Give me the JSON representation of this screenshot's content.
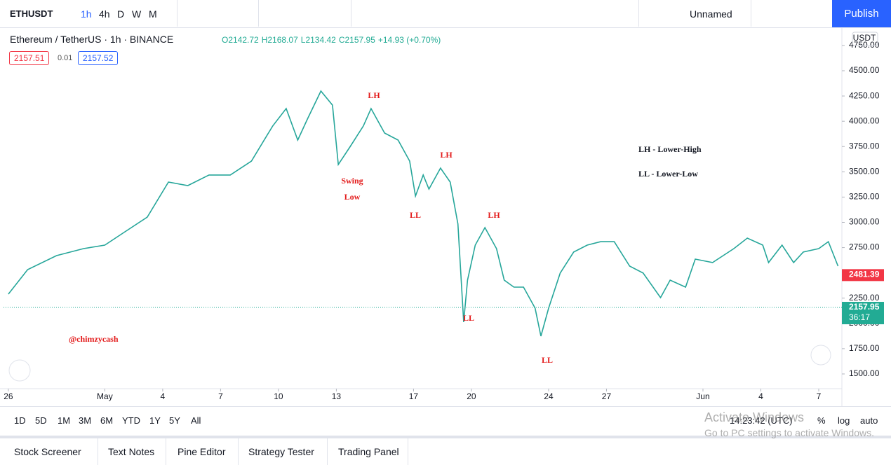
{
  "toolbar": {
    "symbol": "ETHUSDT",
    "intervals": [
      "1h",
      "4h",
      "D",
      "W",
      "M"
    ],
    "layout_name": "Unnamed",
    "publish": "Publish"
  },
  "legend_header": {
    "title": "Ethereum / TetherUS · 1h · BINANCE",
    "ohlc": [
      "O2142.72",
      "H2168.07",
      "L2134.42",
      "C2157.95",
      "+14.93 (+0.70%)"
    ],
    "bid": "2157.51",
    "spread": "0.01",
    "ask": "2157.52"
  },
  "chart_data": {
    "type": "line",
    "color": "#26a69a",
    "currency": "USDT",
    "x": [
      0,
      1.0,
      2.5,
      3.9,
      5.0,
      6.1,
      7.2,
      8.3,
      9.3,
      10.4,
      11.5,
      12.6,
      13.7,
      14.4,
      15.0,
      15.5,
      16.2,
      16.8,
      17.1,
      17.7,
      18.4,
      18.8,
      19.5,
      20.2,
      20.8,
      21.1,
      21.5,
      21.8,
      22.4,
      22.9,
      23.3,
      23.6,
      23.8,
      24.2,
      24.7,
      25.3,
      25.7,
      26.2,
      26.7,
      27.3,
      27.6,
      28.0,
      28.6,
      29.3,
      30.0,
      30.7,
      31.4,
      32.2,
      32.9,
      33.8,
      34.3,
      35.1,
      35.6,
      36.5,
      37.6,
      38.3,
      39.1,
      39.4,
      40.1,
      40.7,
      41.2,
      42.0,
      42.5,
      43.0
    ],
    "values": [
      2290,
      2532,
      2671,
      2740,
      2775,
      2913,
      3052,
      3398,
      3364,
      3468,
      3468,
      3606,
      3953,
      4126,
      3814,
      4022,
      4299,
      4160,
      3572,
      3745,
      3953,
      4126,
      3883,
      3814,
      3606,
      3260,
      3468,
      3329,
      3537,
      3398,
      2983,
      2013,
      2428,
      2775,
      2948,
      2740,
      2428,
      2359,
      2359,
      2151,
      1874,
      2151,
      2498,
      2706,
      2775,
      2809,
      2809,
      2567,
      2498,
      2255,
      2428,
      2359,
      2636,
      2602,
      2740,
      2844,
      2775,
      2602,
      2775,
      2602,
      2706,
      2740,
      2809,
      2567
    ],
    "xlim": [
      -0.25,
      43.2
    ],
    "ylim": [
      1389,
      4888
    ],
    "xticks": [
      {
        "value": 0,
        "label": "26"
      },
      {
        "value": 5,
        "label": "May"
      },
      {
        "value": 8,
        "label": "4"
      },
      {
        "value": 11,
        "label": "7"
      },
      {
        "value": 14,
        "label": "10"
      },
      {
        "value": 17,
        "label": "13"
      },
      {
        "value": 21,
        "label": "17"
      },
      {
        "value": 24,
        "label": "20"
      },
      {
        "value": 28,
        "label": "24"
      },
      {
        "value": 31,
        "label": "27"
      },
      {
        "value": 36,
        "label": "Jun"
      },
      {
        "value": 39,
        "label": "4"
      },
      {
        "value": 42,
        "label": "7"
      }
    ],
    "yticks": [
      {
        "value": 1500,
        "label": "1500.00"
      },
      {
        "value": 1750,
        "label": "1750.00"
      },
      {
        "value": 2000,
        "label": "2000.00"
      },
      {
        "value": 2250,
        "label": "2250.00"
      },
      {
        "value": 2500,
        "label": "2500.00"
      },
      {
        "value": 2750,
        "label": "2750.00"
      },
      {
        "value": 3000,
        "label": "3000.00"
      },
      {
        "value": 3250,
        "label": "3250.00"
      },
      {
        "value": 3500,
        "label": "3500.00"
      },
      {
        "value": 3750,
        "label": "3750.00"
      },
      {
        "value": 4000,
        "label": "4000.00"
      },
      {
        "value": 4250,
        "label": "4250.00"
      },
      {
        "value": 4500,
        "label": "4500.00"
      },
      {
        "value": 4750,
        "label": "4750.00"
      }
    ],
    "price_lines": [
      {
        "value": 2481.39,
        "color": "#f23645"
      },
      {
        "value": 2157.95,
        "color": "#22ab94",
        "countdown": "36:17"
      }
    ],
    "annotations": [
      "LH",
      "Swing",
      "Low",
      "LL",
      "LH",
      "LH",
      "LL",
      "LL"
    ],
    "key": [
      "LH - Lower-High",
      "LL - Lower-Low"
    ],
    "watermark": "@chimzycash"
  },
  "bottom_bar": {
    "ranges": [
      "1D",
      "5D",
      "1M",
      "3M",
      "6M",
      "YTD",
      "1Y",
      "5Y",
      "All"
    ],
    "clock": "14:23:42 (UTC)",
    "percent": "%",
    "log": "log",
    "auto": "auto"
  },
  "tabs": [
    "Stock Screener",
    "Text Notes",
    "Pine Editor",
    "Strategy Tester",
    "Trading Panel"
  ],
  "os_notice": [
    "Activate Windows",
    "Go to PC settings to activate Windows."
  ]
}
